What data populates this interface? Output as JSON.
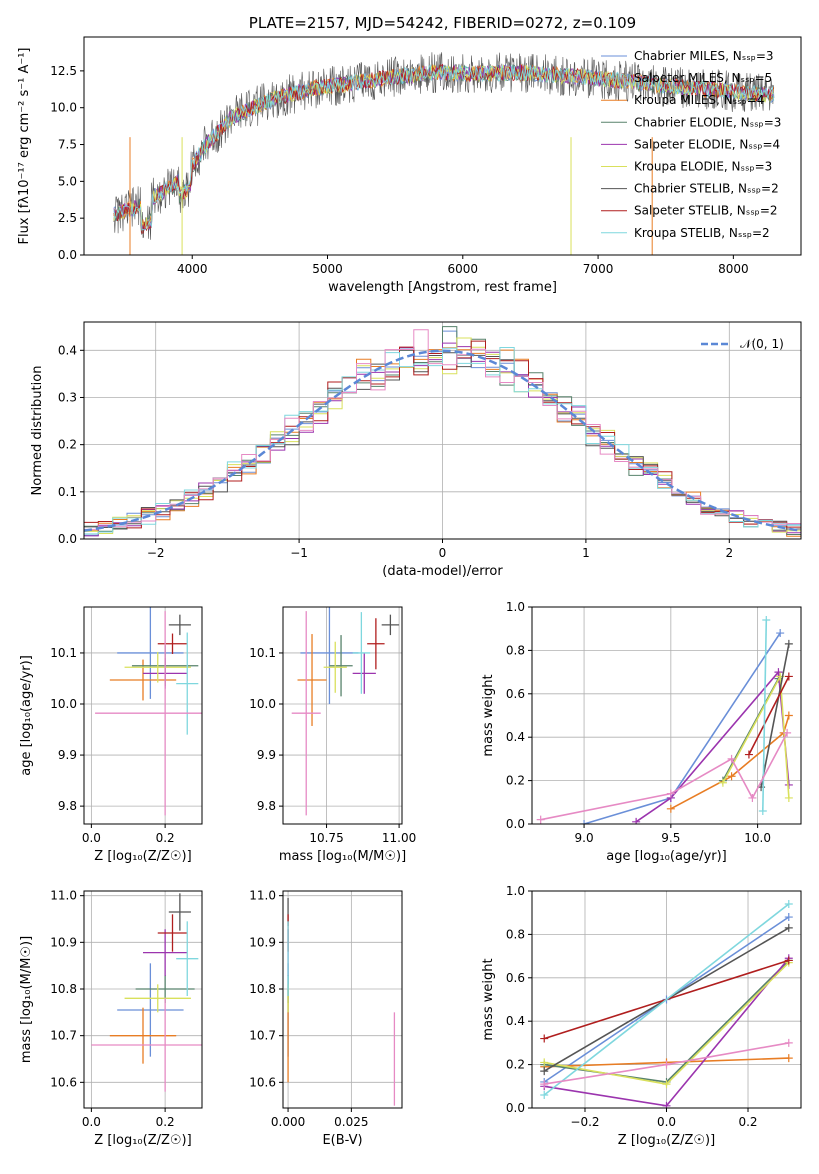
{
  "chart_data": [
    {
      "type": "line",
      "title": "PLATE=2157, MJD=54242, FIBERID=0272, z=0.109",
      "xlabel": "wavelength [Angstrom, rest frame]",
      "ylabel": "Flux [fλ10⁻¹⁷ erg cm⁻² s⁻¹ A⁻¹]",
      "xlim": [
        3200,
        8500
      ],
      "ylim": [
        0,
        14.8
      ],
      "xticks": [
        "4000",
        "5000",
        "6000",
        "7000",
        "8000"
      ],
      "yticks": [
        "0.0",
        "2.5",
        "5.0",
        "7.5",
        "10.0",
        "12.5"
      ],
      "legend": "right",
      "spectrum_shape": {
        "x": [
          3450,
          3600,
          3800,
          3950,
          4100,
          4300,
          4600,
          4900,
          5200,
          5500,
          5800,
          6100,
          6400,
          6700,
          7000,
          7300,
          7600,
          7900,
          8200,
          8300
        ],
        "y": [
          2.8,
          3.3,
          4.4,
          5.3,
          7.5,
          9.4,
          10.6,
          11.3,
          11.7,
          12.1,
          12.4,
          12.3,
          12.4,
          12.2,
          12.0,
          11.7,
          11.4,
          11.2,
          10.9,
          10.9
        ]
      },
      "series": [
        {
          "name": "Chabrier MILES, N_SSP=3",
          "color": "#6a8fd8"
        },
        {
          "name": "Salpeter MILES, N_SSP=5",
          "color": "#a2a2a2"
        },
        {
          "name": "Kroupa MILES, N_SSP=4",
          "color": "#e87d24"
        },
        {
          "name": "Chabrier ELODIE, N_SSP=3",
          "color": "#58826c"
        },
        {
          "name": "Salpeter ELODIE, N_SSP=4",
          "color": "#9b34ae"
        },
        {
          "name": "Kroupa ELODIE, N_SSP=3",
          "color": "#d9e05c"
        },
        {
          "name": "Chabrier STELIB, N_SSP=2",
          "color": "#555555"
        },
        {
          "name": "Salpeter STELIB, N_SSP=2",
          "color": "#b01e1e"
        },
        {
          "name": "Kroupa STELIB, N_SSP=2",
          "color": "#7fd7de"
        }
      ]
    },
    {
      "type": "line",
      "xlabel": "(data-model)/error",
      "ylabel": "Normed distribution",
      "xlim": [
        -2.5,
        2.5
      ],
      "ylim": [
        0,
        0.46
      ],
      "xticks": [
        "−2",
        "−1",
        "0",
        "1",
        "2"
      ],
      "yticks": [
        "0.0",
        "0.1",
        "0.2",
        "0.3",
        "0.4"
      ],
      "legend_label": "𝒩(0, 1)",
      "histogram_bin_width": 0.1,
      "gaussian": {
        "mean": 0,
        "sigma": 1,
        "color": "#5b88d6"
      },
      "histogram_colors": [
        "#6a8fd8",
        "#e87d24",
        "#58826c",
        "#9b34ae",
        "#d9e05c",
        "#555555",
        "#b01e1e",
        "#7fd7de",
        "#e68ac4"
      ]
    },
    {
      "type": "scatter",
      "xlabel": "Z [log₁₀(Z/Z☉)]",
      "ylabel": "age  [log₁₀(age/yr)]",
      "xlim": [
        -0.02,
        0.3
      ],
      "ylim": [
        9.765,
        10.19
      ],
      "xticks": [
        "0.0",
        "0.2"
      ],
      "yticks": [
        "9.8",
        "9.9",
        "10.0",
        "10.1"
      ],
      "points": [
        {
          "x": 0.16,
          "y": 10.1,
          "xerr": 0.09,
          "yerr": 0.09,
          "color": "#6a8fd8"
        },
        {
          "x": 0.14,
          "y": 10.047,
          "xerr": 0.09,
          "yerr": 0.04,
          "color": "#e87d24"
        },
        {
          "x": 0.2,
          "y": 10.075,
          "xerr": 0.09,
          "yerr": 0.04,
          "color": "#58826c"
        },
        {
          "x": 0.2,
          "y": 10.06,
          "xerr": 0.06,
          "yerr": 0.03,
          "color": "#9b34ae"
        },
        {
          "x": 0.18,
          "y": 10.072,
          "xerr": 0.09,
          "yerr": 0.03,
          "color": "#d9e05c"
        },
        {
          "x": 0.24,
          "y": 10.155,
          "xerr": 0.03,
          "yerr": 0.02,
          "color": "#555555"
        },
        {
          "x": 0.22,
          "y": 10.118,
          "xerr": 0.04,
          "yerr": 0.02,
          "color": "#b01e1e"
        },
        {
          "x": 0.26,
          "y": 10.04,
          "xerr": 0.03,
          "yerr": 0.1,
          "color": "#7fd7de"
        },
        {
          "x": 0.2,
          "y": 9.982,
          "xerr": 0.19,
          "yerr": 0.2,
          "color": "#e68ac4"
        }
      ]
    },
    {
      "type": "scatter",
      "xlabel": "mass [log₁₀(M/M☉)]",
      "ylabel": "",
      "xlim": [
        10.6,
        11.01
      ],
      "ylim": [
        9.765,
        10.19
      ],
      "xticks": [
        "10.75",
        "11.00"
      ],
      "yticks": [
        "9.8",
        "9.9",
        "10.0",
        "10.1"
      ],
      "points": [
        {
          "x": 10.76,
          "y": 10.1,
          "xerr": 0.1,
          "yerr": 0.1,
          "color": "#6a8fd8"
        },
        {
          "x": 10.7,
          "y": 10.047,
          "xerr": 0.05,
          "yerr": 0.09,
          "color": "#e87d24"
        },
        {
          "x": 10.8,
          "y": 10.075,
          "xerr": 0.04,
          "yerr": 0.06,
          "color": "#58826c"
        },
        {
          "x": 10.88,
          "y": 10.06,
          "xerr": 0.04,
          "yerr": 0.04,
          "color": "#9b34ae"
        },
        {
          "x": 10.78,
          "y": 10.072,
          "xerr": 0.04,
          "yerr": 0.05,
          "color": "#d9e05c"
        },
        {
          "x": 10.97,
          "y": 10.155,
          "xerr": 0.03,
          "yerr": 0.02,
          "color": "#555555"
        },
        {
          "x": 10.92,
          "y": 10.118,
          "xerr": 0.03,
          "yerr": 0.05,
          "color": "#b01e1e"
        },
        {
          "x": 10.87,
          "y": 10.1,
          "xerr": 0.03,
          "yerr": 0.08,
          "color": "#7fd7de"
        },
        {
          "x": 10.68,
          "y": 9.982,
          "xerr": 0.05,
          "yerr": 0.2,
          "color": "#e68ac4"
        }
      ]
    },
    {
      "type": "line",
      "xlabel": "age  [log₁₀(age/yr)]",
      "ylabel": "mass weight",
      "xlim": [
        8.7,
        10.25
      ],
      "ylim": [
        0,
        1
      ],
      "xticks": [
        "9.0",
        "9.5",
        "10.0"
      ],
      "yticks": [
        "0.0",
        "0.2",
        "0.4",
        "0.6",
        "0.8",
        "1.0"
      ],
      "series": [
        {
          "color": "#6a8fd8",
          "x": [
            9.0,
            9.5,
            10.13
          ],
          "y": [
            0.0,
            0.12,
            0.88
          ]
        },
        {
          "color": "#e87d24",
          "x": [
            9.5,
            9.85,
            10.15,
            10.18
          ],
          "y": [
            0.07,
            0.22,
            0.42,
            0.5
          ]
        },
        {
          "color": "#58826c",
          "x": [
            9.8,
            10.12
          ],
          "y": [
            0.2,
            0.67
          ]
        },
        {
          "color": "#9b34ae",
          "x": [
            9.3,
            9.5,
            10.12,
            10.18
          ],
          "y": [
            0.01,
            0.12,
            0.7,
            0.18
          ]
        },
        {
          "color": "#d9e05c",
          "x": [
            9.8,
            10.13,
            10.18
          ],
          "y": [
            0.19,
            0.68,
            0.12
          ]
        },
        {
          "color": "#555555",
          "x": [
            10.02,
            10.18
          ],
          "y": [
            0.17,
            0.83
          ]
        },
        {
          "color": "#b01e1e",
          "x": [
            9.95,
            10.18
          ],
          "y": [
            0.32,
            0.68
          ]
        },
        {
          "color": "#7fd7de",
          "x": [
            10.03,
            10.05
          ],
          "y": [
            0.06,
            0.94
          ]
        },
        {
          "color": "#e68ac4",
          "x": [
            8.75,
            9.5,
            9.85,
            9.97,
            10.17
          ],
          "y": [
            0.02,
            0.14,
            0.3,
            0.12,
            0.42
          ]
        }
      ]
    },
    {
      "type": "scatter",
      "xlabel": "Z [log₁₀(Z/Z☉)]",
      "ylabel": "mass [log₁₀(M/M☉)]",
      "xlim": [
        -0.02,
        0.3
      ],
      "ylim": [
        10.545,
        11.01
      ],
      "xticks": [
        "0.0",
        "0.2"
      ],
      "yticks": [
        "10.6",
        "10.7",
        "10.8",
        "10.9",
        "11.0"
      ],
      "points": [
        {
          "x": 0.16,
          "y": 10.755,
          "xerr": 0.09,
          "yerr": 0.1,
          "color": "#6a8fd8"
        },
        {
          "x": 0.14,
          "y": 10.7,
          "xerr": 0.09,
          "yerr": 0.06,
          "color": "#e87d24"
        },
        {
          "x": 0.2,
          "y": 10.8,
          "xerr": 0.08,
          "yerr": 0.03,
          "color": "#58826c"
        },
        {
          "x": 0.2,
          "y": 10.878,
          "xerr": 0.06,
          "yerr": 0.05,
          "color": "#9b34ae"
        },
        {
          "x": 0.18,
          "y": 10.78,
          "xerr": 0.09,
          "yerr": 0.03,
          "color": "#d9e05c"
        },
        {
          "x": 0.24,
          "y": 10.965,
          "xerr": 0.03,
          "yerr": 0.04,
          "color": "#555555"
        },
        {
          "x": 0.22,
          "y": 10.92,
          "xerr": 0.04,
          "yerr": 0.04,
          "color": "#b01e1e"
        },
        {
          "x": 0.26,
          "y": 10.865,
          "xerr": 0.03,
          "yerr": 0.08,
          "color": "#7fd7de"
        },
        {
          "x": 0.2,
          "y": 10.68,
          "xerr": 0.2,
          "yerr": 0.1,
          "color": "#e68ac4"
        }
      ]
    },
    {
      "type": "scatter",
      "xlabel": "E(B-V)",
      "ylabel": "",
      "xlim": [
        -0.002,
        0.045
      ],
      "ylim": [
        10.545,
        11.01
      ],
      "xticks": [
        "0.000",
        "0.025"
      ],
      "yticks": [
        "10.6",
        "10.7",
        "10.8",
        "10.9",
        "11.0"
      ],
      "points": [
        {
          "x": 0.0,
          "y": 10.755,
          "xerr": 0,
          "yerr": 0.1,
          "color": "#6a8fd8"
        },
        {
          "x": 0.0,
          "y": 10.7,
          "xerr": 0,
          "yerr": 0.1,
          "color": "#e87d24"
        },
        {
          "x": 0.0,
          "y": 10.8,
          "xerr": 0,
          "yerr": 0.03,
          "color": "#58826c"
        },
        {
          "x": 0.0,
          "y": 10.878,
          "xerr": 0,
          "yerr": 0.05,
          "color": "#9b34ae"
        },
        {
          "x": 0.0,
          "y": 10.78,
          "xerr": 0,
          "yerr": 0.03,
          "color": "#d9e05c"
        },
        {
          "x": 0.0,
          "y": 10.965,
          "xerr": 0,
          "yerr": 0.03,
          "color": "#555555"
        },
        {
          "x": 0.0,
          "y": 10.92,
          "xerr": 0,
          "yerr": 0.04,
          "color": "#b01e1e"
        },
        {
          "x": 0.0,
          "y": 10.865,
          "xerr": 0,
          "yerr": 0.08,
          "color": "#7fd7de"
        },
        {
          "x": 0.042,
          "y": 10.65,
          "xerr": 0,
          "yerr": 0.1,
          "color": "#e68ac4"
        }
      ]
    },
    {
      "type": "line",
      "xlabel": "Z [log₁₀(Z/Z☉)]",
      "ylabel": "mass weight",
      "xlim": [
        -0.33,
        0.33
      ],
      "ylim": [
        0,
        1
      ],
      "xticks": [
        "−0.2",
        "0.0",
        "0.2"
      ],
      "yticks": [
        "0.0",
        "0.2",
        "0.4",
        "0.6",
        "0.8",
        "1.0"
      ],
      "series": [
        {
          "color": "#6a8fd8",
          "x": [
            -0.3,
            0.0,
            0.3
          ],
          "y": [
            0.12,
            0.5,
            0.88
          ]
        },
        {
          "color": "#e87d24",
          "x": [
            -0.3,
            0.0,
            0.3
          ],
          "y": [
            0.19,
            0.21,
            0.23
          ]
        },
        {
          "color": "#58826c",
          "x": [
            -0.3,
            0.0,
            0.3
          ],
          "y": [
            0.2,
            0.12,
            0.68
          ]
        },
        {
          "color": "#9b34ae",
          "x": [
            -0.3,
            0.0,
            0.3
          ],
          "y": [
            0.1,
            0.01,
            0.69
          ]
        },
        {
          "color": "#d9e05c",
          "x": [
            -0.3,
            0.0,
            0.3
          ],
          "y": [
            0.21,
            0.11,
            0.67
          ]
        },
        {
          "color": "#555555",
          "x": [
            -0.3,
            0.3
          ],
          "y": [
            0.17,
            0.83
          ]
        },
        {
          "color": "#b01e1e",
          "x": [
            -0.3,
            0.3
          ],
          "y": [
            0.32,
            0.68
          ]
        },
        {
          "color": "#7fd7de",
          "x": [
            -0.3,
            0.3
          ],
          "y": [
            0.06,
            0.94
          ]
        },
        {
          "color": "#e68ac4",
          "x": [
            -0.3,
            0.0,
            0.3
          ],
          "y": [
            0.11,
            0.2,
            0.3
          ]
        }
      ]
    }
  ]
}
